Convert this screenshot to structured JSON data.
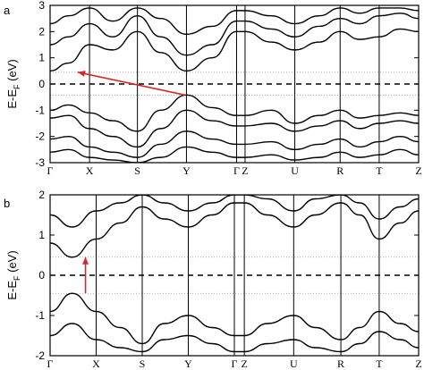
{
  "chart_data": [
    {
      "type": "line",
      "panel_label": "a",
      "ylabel": "E-E",
      "ylabel_sub": "F",
      "ylabel_unit": "(eV)",
      "ylim": [
        -3,
        3
      ],
      "yticks": [
        -3,
        -2,
        -1,
        0,
        1,
        2,
        3
      ],
      "kpoints": [
        "Γ",
        "X",
        "S",
        "Y",
        "Γ",
        "Z",
        "U",
        "R",
        "T",
        "Z"
      ],
      "kpoint_pos": [
        0,
        0.107,
        0.237,
        0.37,
        0.506,
        0.529,
        0.664,
        0.787,
        0.893,
        1.0
      ],
      "fermi_level": 0,
      "dotted_levels": [
        0.45,
        -0.42
      ],
      "arrow": {
        "from": [
          0.366,
          -0.42
        ],
        "to": [
          0.075,
          0.45
        ],
        "color": "#d62728"
      },
      "bands": [
        {
          "x": [
            0,
            0.05,
            0.107,
            0.17,
            0.237,
            0.3,
            0.37,
            0.44,
            0.506,
            0.529,
            0.6,
            0.664,
            0.73,
            0.787,
            0.84,
            0.893,
            0.95,
            1.0
          ],
          "y": [
            0.5,
            0.8,
            1.5,
            1.3,
            2.0,
            1.2,
            0.5,
            1.0,
            2.0,
            2.0,
            1.6,
            1.3,
            1.6,
            2.0,
            1.7,
            1.8,
            2.1,
            2.0
          ]
        },
        {
          "x": [
            0,
            0.05,
            0.107,
            0.17,
            0.237,
            0.3,
            0.37,
            0.44,
            0.506,
            0.529,
            0.6,
            0.664,
            0.73,
            0.787,
            0.84,
            0.893,
            0.95,
            1.0
          ],
          "y": [
            1.5,
            1.8,
            2.3,
            1.8,
            2.6,
            1.8,
            1.1,
            1.5,
            2.4,
            2.4,
            2.1,
            1.8,
            2.2,
            2.5,
            2.3,
            2.6,
            2.7,
            2.5
          ]
        },
        {
          "x": [
            0,
            0.05,
            0.107,
            0.17,
            0.237,
            0.3,
            0.37,
            0.44,
            0.506,
            0.529,
            0.6,
            0.664,
            0.73,
            0.787,
            0.84,
            0.893,
            0.95,
            1.0
          ],
          "y": [
            2.3,
            2.6,
            2.9,
            2.4,
            2.9,
            2.5,
            1.9,
            2.2,
            2.8,
            2.8,
            2.6,
            2.3,
            2.6,
            2.9,
            2.7,
            2.9,
            2.9,
            2.8
          ]
        },
        {
          "x": [
            0,
            0.05,
            0.107,
            0.17,
            0.237,
            0.3,
            0.37,
            0.44,
            0.506,
            0.529,
            0.6,
            0.664,
            0.73,
            0.787,
            0.84,
            0.893,
            0.95,
            1.0
          ],
          "y": [
            -1.0,
            -0.8,
            -1.1,
            -1.4,
            -1.8,
            -1.0,
            -0.42,
            -0.9,
            -1.2,
            -1.2,
            -1.0,
            -1.5,
            -1.2,
            -1.0,
            -1.3,
            -1.2,
            -1.1,
            -1.2
          ]
        },
        {
          "x": [
            0,
            0.05,
            0.107,
            0.17,
            0.237,
            0.3,
            0.37,
            0.44,
            0.506,
            0.529,
            0.6,
            0.664,
            0.73,
            0.787,
            0.84,
            0.893,
            0.95,
            1.0
          ],
          "y": [
            -1.3,
            -1.2,
            -1.7,
            -2.0,
            -2.4,
            -1.7,
            -1.0,
            -1.4,
            -1.6,
            -1.6,
            -1.5,
            -1.8,
            -1.6,
            -1.4,
            -1.7,
            -1.5,
            -1.4,
            -1.5
          ]
        },
        {
          "x": [
            0,
            0.05,
            0.107,
            0.17,
            0.237,
            0.3,
            0.37,
            0.44,
            0.506,
            0.529,
            0.6,
            0.664,
            0.73,
            0.787,
            0.84,
            0.893,
            0.95,
            1.0
          ],
          "y": [
            -2.1,
            -2.0,
            -2.4,
            -2.6,
            -2.8,
            -2.3,
            -1.8,
            -2.1,
            -2.3,
            -2.3,
            -2.2,
            -2.5,
            -2.3,
            -2.1,
            -2.4,
            -2.2,
            -2.0,
            -2.2
          ]
        },
        {
          "x": [
            0,
            0.05,
            0.107,
            0.17,
            0.237,
            0.3,
            0.37,
            0.44,
            0.506,
            0.529,
            0.6,
            0.664,
            0.73,
            0.787,
            0.84,
            0.893,
            0.95,
            1.0
          ],
          "y": [
            -2.6,
            -2.5,
            -2.8,
            -2.9,
            -3.0,
            -2.8,
            -2.4,
            -2.6,
            -2.8,
            -2.8,
            -2.7,
            -2.9,
            -2.8,
            -2.6,
            -2.8,
            -2.7,
            -2.5,
            -2.7
          ]
        }
      ]
    },
    {
      "type": "line",
      "panel_label": "b",
      "ylabel": "E-E",
      "ylabel_sub": "F",
      "ylabel_unit": "(eV)",
      "ylim": [
        -2,
        2
      ],
      "yticks": [
        -2,
        -1,
        0,
        1,
        2
      ],
      "kpoints": [
        "Γ",
        "X",
        "S",
        "Y",
        "Γ",
        "Z",
        "U",
        "R",
        "T",
        "Z"
      ],
      "kpoint_pos": [
        0,
        0.125,
        0.25,
        0.375,
        0.5,
        0.527,
        0.661,
        0.789,
        0.893,
        1.0
      ],
      "fermi_level": 0,
      "dotted_levels": [
        0.45,
        -0.45
      ],
      "arrow": {
        "from": [
          0.096,
          -0.45
        ],
        "to": [
          0.096,
          0.45
        ],
        "color": "#d62728"
      },
      "bands": [
        {
          "x": [
            0,
            0.06,
            0.125,
            0.19,
            0.25,
            0.31,
            0.375,
            0.44,
            0.5,
            0.527,
            0.59,
            0.661,
            0.72,
            0.789,
            0.84,
            0.893,
            0.95,
            1.0
          ],
          "y": [
            0.8,
            0.45,
            0.9,
            1.3,
            1.7,
            1.4,
            1.2,
            1.5,
            1.8,
            1.8,
            1.5,
            1.2,
            1.5,
            1.8,
            1.5,
            0.9,
            1.3,
            1.6
          ]
        },
        {
          "x": [
            0,
            0.06,
            0.125,
            0.19,
            0.25,
            0.31,
            0.375,
            0.44,
            0.5,
            0.527,
            0.59,
            0.661,
            0.72,
            0.789,
            0.84,
            0.893,
            0.95,
            1.0
          ],
          "y": [
            1.5,
            1.2,
            1.6,
            1.8,
            2.0,
            1.8,
            1.6,
            1.8,
            2.0,
            2.0,
            1.9,
            1.6,
            1.9,
            2.0,
            1.8,
            1.4,
            1.7,
            1.9
          ]
        },
        {
          "x": [
            0,
            0.06,
            0.125,
            0.19,
            0.25,
            0.31,
            0.375,
            0.44,
            0.5,
            0.527,
            0.59,
            0.661,
            0.72,
            0.789,
            0.84,
            0.893,
            0.95,
            1.0
          ],
          "y": [
            -0.9,
            -0.45,
            -0.9,
            -1.3,
            -1.7,
            -1.2,
            -1.0,
            -1.3,
            -1.5,
            -1.5,
            -1.2,
            -1.0,
            -1.3,
            -1.6,
            -1.3,
            -0.9,
            -1.2,
            -1.4
          ]
        },
        {
          "x": [
            0,
            0.06,
            0.125,
            0.19,
            0.25,
            0.31,
            0.375,
            0.44,
            0.5,
            0.527,
            0.59,
            0.661,
            0.72,
            0.789,
            0.84,
            0.893,
            0.95,
            1.0
          ],
          "y": [
            -1.5,
            -1.2,
            -1.6,
            -1.8,
            -1.9,
            -1.6,
            -1.5,
            -1.7,
            -1.9,
            -1.9,
            -1.7,
            -1.6,
            -1.8,
            -1.9,
            -1.7,
            -1.4,
            -1.6,
            -1.8
          ]
        }
      ]
    }
  ]
}
